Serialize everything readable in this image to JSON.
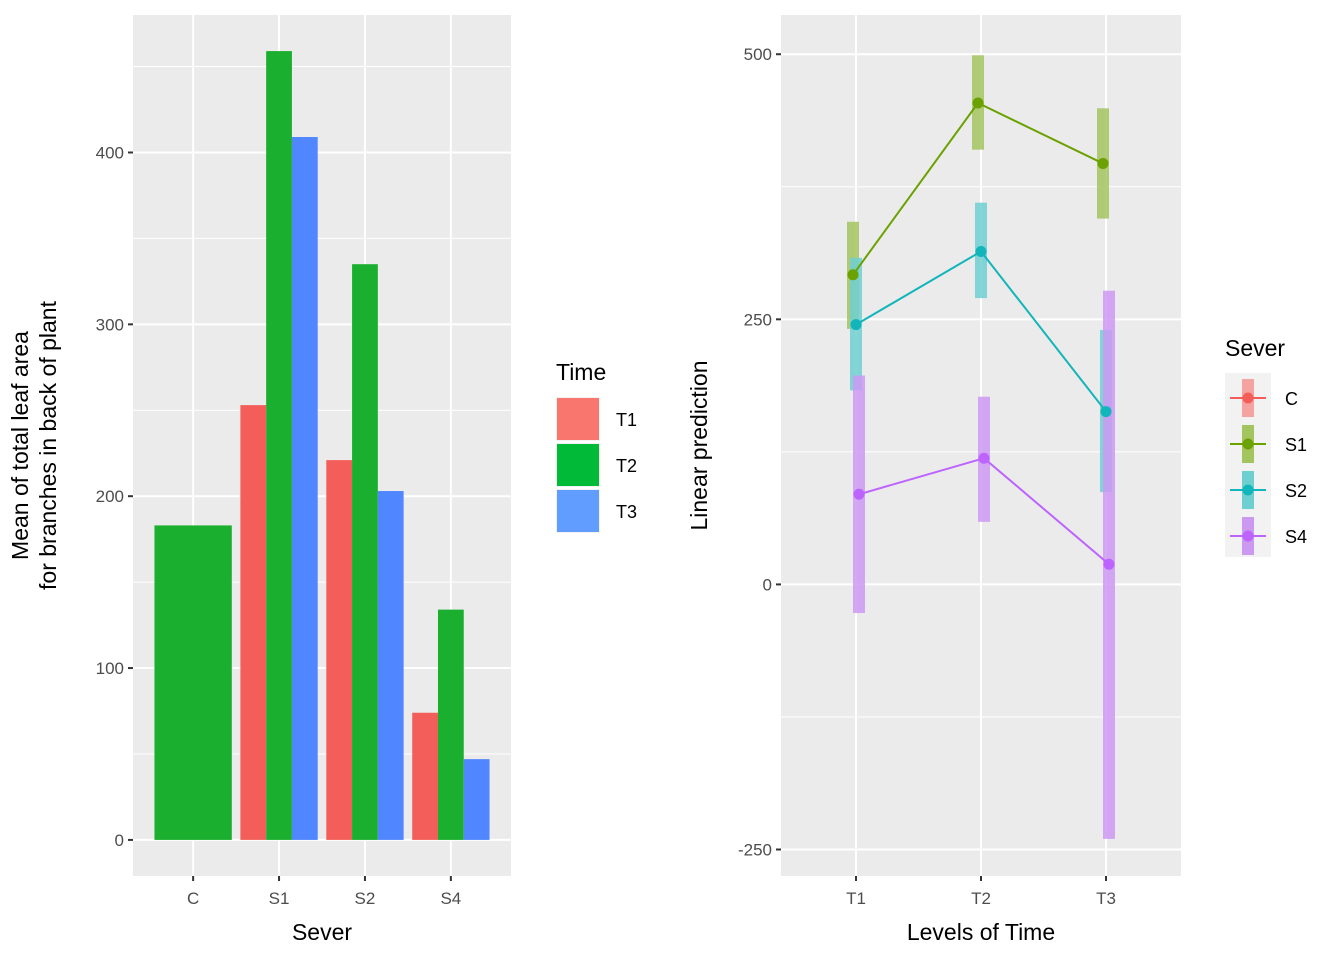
{
  "chart_data": [
    {
      "type": "bar",
      "title": "",
      "xlabel": "Sever",
      "ylabel_lines": [
        "Mean of total leaf area",
        "for branches in back of plant"
      ],
      "categories": [
        "C",
        "S1",
        "S2",
        "S4"
      ],
      "yticks": [
        0,
        100,
        200,
        300,
        400
      ],
      "ylim": [
        -21,
        480
      ],
      "grid": true,
      "legend": {
        "title": "Time",
        "position": "right",
        "entries": [
          {
            "label": "T1",
            "color": "#F8766D"
          },
          {
            "label": "T2",
            "color": "#00BA38"
          },
          {
            "label": "T3",
            "color": "#619CFF"
          }
        ]
      },
      "series": [
        {
          "name": "T1",
          "color": "#F35E5A",
          "values": [
            null,
            253,
            221,
            74
          ]
        },
        {
          "name": "T2",
          "color": "#1AAF2E",
          "values": [
            183,
            459,
            335,
            134
          ]
        },
        {
          "name": "T3",
          "color": "#5086FF",
          "values": [
            null,
            409,
            203,
            47
          ]
        }
      ]
    },
    {
      "type": "line",
      "title": "",
      "xlabel": "Levels of Time",
      "ylabel": "Linear prediction",
      "categories": [
        "T1",
        "T2",
        "T3"
      ],
      "yticks": [
        -250,
        0,
        250,
        500
      ],
      "ylim": [
        -275,
        537
      ],
      "grid": true,
      "legend": {
        "title": "Sever",
        "position": "right",
        "entries": [
          {
            "label": "C",
            "color": "#F8766D"
          },
          {
            "label": "S1",
            "color": "#7CAE00"
          },
          {
            "label": "S2",
            "color": "#00BFC4"
          },
          {
            "label": "S4",
            "color": "#C77CFF"
          }
        ]
      },
      "series": [
        {
          "name": "S1",
          "color": "#6BA100",
          "ci_color": "#A3C45F",
          "values": [
            292,
            454,
            397
          ],
          "ci_low": [
            241,
            410,
            345
          ],
          "ci_high": [
            342,
            499,
            449
          ]
        },
        {
          "name": "S2",
          "color": "#12B5BA",
          "ci_color": "#6ECFD1",
          "values": [
            245,
            314,
            163
          ],
          "ci_low": [
            183,
            270,
            87
          ],
          "ci_high": [
            308,
            360,
            240
          ]
        },
        {
          "name": "S4",
          "color": "#BD63FF",
          "ci_color": "#CC99F2",
          "values": [
            85,
            119,
            19
          ],
          "ci_low": [
            -27,
            59,
            -240
          ],
          "ci_high": [
            197,
            177,
            277
          ]
        }
      ]
    }
  ]
}
